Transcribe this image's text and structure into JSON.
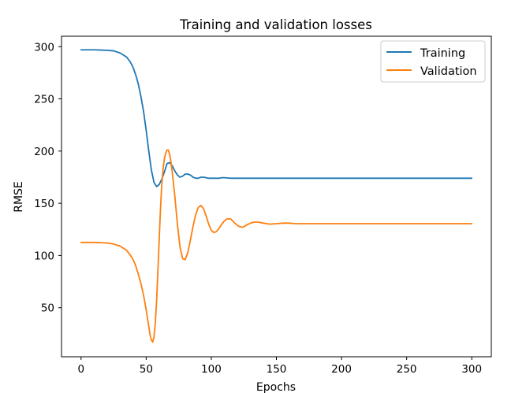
{
  "chart_data": {
    "type": "line",
    "title": "Training and validation losses",
    "xlabel": "Epochs",
    "ylabel": "RMSE",
    "xlim": [
      -15,
      315
    ],
    "ylim": [
      3,
      310
    ],
    "xticks": [
      0,
      50,
      100,
      150,
      200,
      250,
      300
    ],
    "yticks": [
      50,
      100,
      150,
      200,
      250,
      300
    ],
    "legend_position": "top-right",
    "series": [
      {
        "name": "Training",
        "color": "#1f77b4",
        "x": [
          0,
          10,
          20,
          25,
          30,
          35,
          38,
          40,
          42,
          44,
          46,
          48,
          50,
          52,
          54,
          56,
          58,
          60,
          62,
          64,
          66,
          68,
          70,
          72,
          74,
          76,
          78,
          80,
          82,
          84,
          86,
          88,
          90,
          92,
          94,
          96,
          98,
          100,
          102,
          104,
          106,
          108,
          110,
          115,
          120,
          130,
          140,
          150,
          160,
          180,
          200,
          220,
          240,
          260,
          280,
          300
        ],
        "values": [
          297,
          297,
          296.5,
          296,
          294,
          290,
          285,
          280,
          273,
          264,
          252,
          238,
          220,
          200,
          182,
          170,
          166,
          168,
          173,
          180,
          188,
          189,
          186,
          181,
          177,
          175,
          176,
          178,
          178,
          177,
          175,
          174,
          174,
          175,
          175,
          174.5,
          174,
          174,
          174,
          174,
          174,
          174.5,
          174.5,
          174,
          174,
          174,
          174,
          174,
          174,
          174,
          174,
          174,
          174,
          174,
          174,
          174
        ]
      },
      {
        "name": "Validation",
        "color": "#ff7f0e",
        "x": [
          0,
          10,
          20,
          25,
          30,
          35,
          38,
          40,
          42,
          44,
          46,
          48,
          50,
          52,
          53,
          54,
          55,
          56,
          57,
          58,
          59,
          60,
          61,
          62,
          63,
          64,
          65,
          66,
          67,
          68,
          69,
          70,
          72,
          74,
          76,
          78,
          80,
          82,
          84,
          86,
          88,
          90,
          92,
          94,
          96,
          98,
          100,
          102,
          104,
          106,
          108,
          110,
          112,
          115,
          118,
          121,
          124,
          127,
          130,
          133,
          136,
          140,
          145,
          150,
          155,
          160,
          165,
          170,
          175,
          180,
          190,
          200,
          220,
          240,
          260,
          280,
          300
        ],
        "values": [
          112.5,
          112.5,
          112,
          111,
          109,
          105,
          100,
          96,
          90,
          82,
          73,
          62,
          48,
          32,
          24,
          19,
          17,
          22,
          35,
          56,
          85,
          115,
          145,
          168,
          183,
          193,
          198,
          201,
          201,
          197,
          190,
          180,
          157,
          130,
          108,
          97,
          96,
          103,
          115,
          128,
          139,
          146,
          148,
          145,
          138,
          130,
          124,
          122,
          123,
          126,
          130,
          133,
          135,
          135,
          131,
          128,
          127,
          129,
          131,
          132,
          132,
          131,
          130,
          130.5,
          131,
          131,
          130.5,
          130.5,
          130.5,
          130.5,
          130.5,
          130.5,
          130.5,
          130.5,
          130.5,
          130.5,
          130.5
        ]
      }
    ]
  }
}
